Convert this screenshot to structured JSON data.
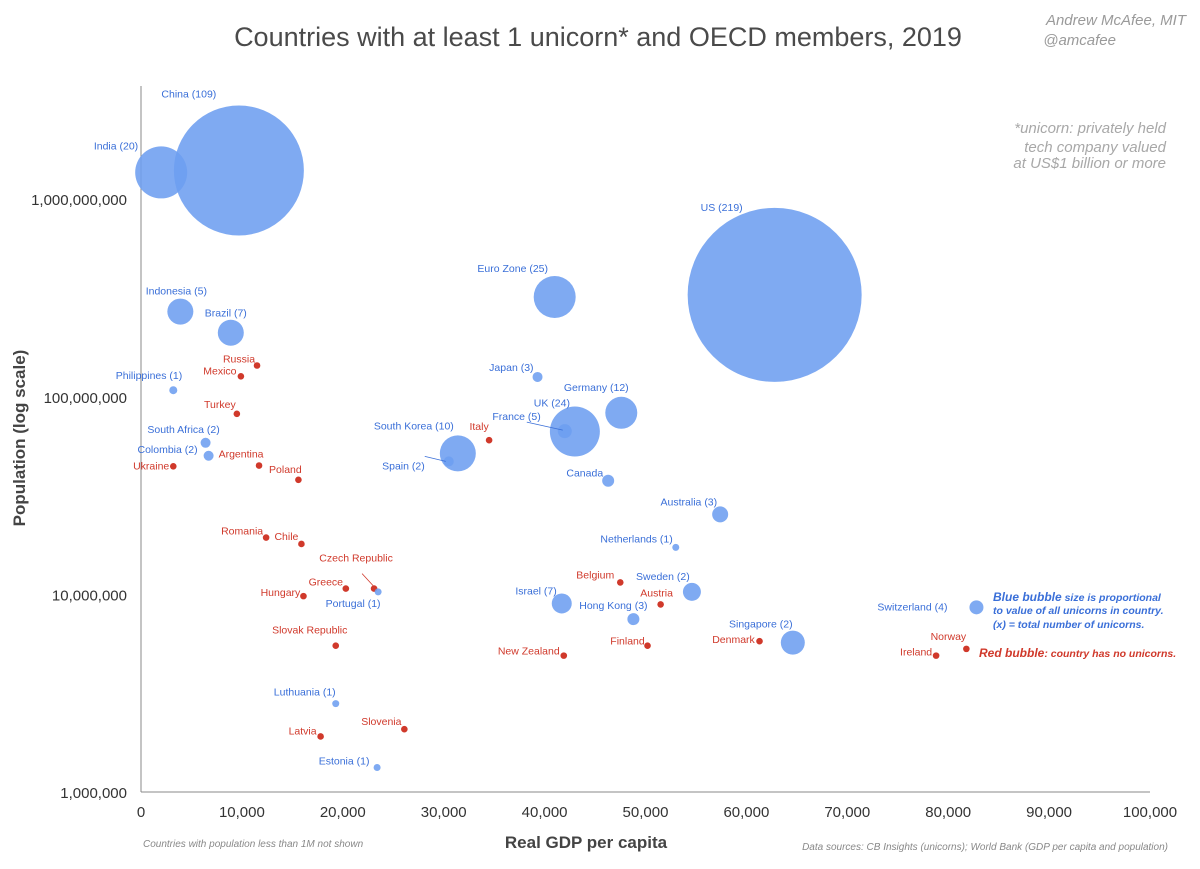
{
  "chart_data": {
    "type": "scatter",
    "title": "Countries with at least 1 unicorn* and OECD members, 2019",
    "credit": [
      "Andrew McAfee, MIT",
      "@amcafee"
    ],
    "note": [
      "*unicorn: privately held",
      "tech company valued",
      "at US$1 billion or more"
    ],
    "xlabel": "Real GDP per capita",
    "ylabel": "Population (log scale)",
    "xlim": [
      0,
      100000
    ],
    "ylim": [
      1000000,
      3500000000
    ],
    "yscale": "log",
    "x_ticks": [
      "0",
      "10,000",
      "20,000",
      "30,000",
      "40,000",
      "50,000",
      "60,000",
      "70,000",
      "80,000",
      "90,000",
      "100,000"
    ],
    "y_ticks": [
      "1,000,000",
      "10,000,000",
      "100,000,000",
      "1,000,000,000"
    ],
    "footnote_left": "Countries with population less than 1M not shown",
    "footnote_right": "Data sources: CB Insights (unicorns); World Bank (GDP per capita and population)",
    "legend": {
      "blue_bold": "Blue bubble",
      "blue_rest_1": " size is proportional",
      "blue_rest_2": "to value of all unicorns in country.",
      "blue_rest_3": "(x) = total number of unicorns.",
      "red_bold": "Red bubble",
      "red_rest": ": country has no unicorns."
    },
    "colors": {
      "blue": "#6d9ef0",
      "blue_text": "#3a6fd8",
      "red": "#d0392b",
      "axis": "#888888"
    },
    "series": [
      {
        "name": "Blue bubble",
        "points": [
          {
            "label": "China (109)",
            "x": 9700,
            "y": 1398000000,
            "r": 65
          },
          {
            "label": "India (20)",
            "x": 2000,
            "y": 1366000000,
            "r": 26
          },
          {
            "label": "US (219)",
            "x": 62800,
            "y": 328000000,
            "r": 87
          },
          {
            "label": "Euro Zone (25)",
            "x": 41000,
            "y": 320000000,
            "r": 21
          },
          {
            "label": "Indonesia (5)",
            "x": 3900,
            "y": 270000000,
            "r": 13
          },
          {
            "label": "Brazil (7)",
            "x": 8900,
            "y": 211000000,
            "r": 13
          },
          {
            "label": "Philippines (1)",
            "x": 3200,
            "y": 108000000,
            "r": 4
          },
          {
            "label": "Japan (3)",
            "x": 39300,
            "y": 126000000,
            "r": 5
          },
          {
            "label": "Germany (12)",
            "x": 47600,
            "y": 83000000,
            "r": 16
          },
          {
            "label": "UK (24)",
            "x": 43000,
            "y": 66700000,
            "r": 25
          },
          {
            "label": "France (5)",
            "x": 42000,
            "y": 67000000,
            "r": 7
          },
          {
            "label": "South Korea (10)",
            "x": 31400,
            "y": 51700000,
            "r": 18
          },
          {
            "label": "Spain (2)",
            "x": 30500,
            "y": 47100000,
            "r": 5
          },
          {
            "label": "South Africa (2)",
            "x": 6400,
            "y": 58500000,
            "r": 5
          },
          {
            "label": "Colombia (2)",
            "x": 6700,
            "y": 50300000,
            "r": 5
          },
          {
            "label": "Canada",
            "x": 46300,
            "y": 37600000,
            "r": 6
          },
          {
            "label": "Australia (3)",
            "x": 57400,
            "y": 25400000,
            "r": 8
          },
          {
            "label": "Netherlands (1)",
            "x": 53000,
            "y": 17300000,
            "r": 3.5
          },
          {
            "label": "Sweden (2)",
            "x": 54600,
            "y": 10300000,
            "r": 9
          },
          {
            "label": "Israel (7)",
            "x": 41700,
            "y": 9000000,
            "r": 10
          },
          {
            "label": "Hong Kong (3)",
            "x": 48800,
            "y": 7500000,
            "r": 6
          },
          {
            "label": "Portugal (1)",
            "x": 23500,
            "y": 10300000,
            "r": 3.5
          },
          {
            "label": "Singapore (2)",
            "x": 64600,
            "y": 5700000,
            "r": 12
          },
          {
            "label": "Switzerland (4)",
            "x": 82800,
            "y": 8600000,
            "r": 7
          },
          {
            "label": "Luthuania (1)",
            "x": 19300,
            "y": 2800000,
            "r": 3.5
          },
          {
            "label": "Estonia (1)",
            "x": 23400,
            "y": 1330000,
            "r": 3.5
          }
        ]
      },
      {
        "name": "Red bubble",
        "points": [
          {
            "label": "Russia",
            "x": 11500,
            "y": 144000000
          },
          {
            "label": "Mexico",
            "x": 9900,
            "y": 127000000
          },
          {
            "label": "Turkey",
            "x": 9500,
            "y": 82000000
          },
          {
            "label": "Italy",
            "x": 34500,
            "y": 60300000
          },
          {
            "label": "Argentina",
            "x": 11700,
            "y": 44900000
          },
          {
            "label": "Ukraine",
            "x": 3200,
            "y": 44500000
          },
          {
            "label": "Poland",
            "x": 15600,
            "y": 38000000
          },
          {
            "label": "Romania",
            "x": 12400,
            "y": 19400000
          },
          {
            "label": "Chile",
            "x": 15900,
            "y": 18000000
          },
          {
            "label": "Czech Republic",
            "x": 23100,
            "y": 10700000
          },
          {
            "label": "Greece",
            "x": 20300,
            "y": 10700000
          },
          {
            "label": "Hungary",
            "x": 16100,
            "y": 9800000
          },
          {
            "label": "Belgium",
            "x": 47500,
            "y": 11500000
          },
          {
            "label": "Austria",
            "x": 51500,
            "y": 8900000
          },
          {
            "label": "Slovak Republic",
            "x": 19300,
            "y": 5500000
          },
          {
            "label": "Finland",
            "x": 50200,
            "y": 5500000
          },
          {
            "label": "Denmark",
            "x": 61300,
            "y": 5800000
          },
          {
            "label": "New Zealand",
            "x": 41900,
            "y": 4900000
          },
          {
            "label": "Norway",
            "x": 81800,
            "y": 5300000
          },
          {
            "label": "Ireland",
            "x": 78800,
            "y": 4900000
          },
          {
            "label": "Slovenia",
            "x": 26100,
            "y": 2080000
          },
          {
            "label": "Latvia",
            "x": 17800,
            "y": 1910000
          }
        ]
      }
    ]
  }
}
